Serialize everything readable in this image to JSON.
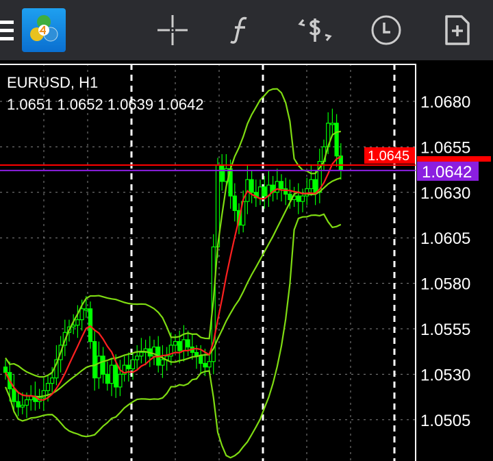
{
  "toolbar": {
    "menu_icon": "hamburger-menu-icon",
    "logo": "metatrader-4-logo",
    "buttons": [
      {
        "name": "crosshair",
        "icon": "crosshair-icon"
      },
      {
        "name": "indicators",
        "icon": "function-icon"
      },
      {
        "name": "trade",
        "icon": "dollar-exchange-icon"
      },
      {
        "name": "timeframe",
        "icon": "clock-icon"
      },
      {
        "name": "new-order",
        "icon": "new-document-icon"
      }
    ]
  },
  "chart_header": {
    "symbol": "EURUSD, H1",
    "ohlc": "1.0651 1.0652 1.0639 1.0642"
  },
  "colors": {
    "background": "#000000",
    "toolbar": "#2b2c30",
    "candle": "#00ff00",
    "bands": "#7fdc12",
    "moving_average": "#ff2020",
    "ask_line": "#ff0000",
    "bid_line": "#8b1fe0"
  },
  "price_labels": {
    "ask": "1.0645",
    "bid": "1.0642"
  },
  "chart_data": {
    "type": "candlestick",
    "symbol": "EURUSD",
    "timeframe": "H1",
    "y_ticks": [
      "1.0680",
      "1.0655",
      "1.0630",
      "1.0605",
      "1.0580",
      "1.0555",
      "1.0530",
      "1.0505"
    ],
    "ylim": [
      1.0478,
      1.0698
    ],
    "grid": true,
    "ask": 1.0645,
    "bid": 1.0642,
    "closes": [
      1.0531,
      1.0522,
      1.0515,
      1.0512,
      1.0513,
      1.0516,
      1.0518,
      1.0515,
      1.0517,
      1.0521,
      1.0525,
      1.0528,
      1.0538,
      1.0546,
      1.0553,
      1.0556,
      1.0557,
      1.056,
      1.0566,
      1.0566,
      1.0548,
      1.0528,
      1.054,
      1.053,
      1.0525,
      1.0535,
      1.0523,
      1.053,
      1.0535,
      1.0533,
      1.0538,
      1.054,
      1.0542,
      1.0544,
      1.054,
      1.0545,
      1.0535,
      1.0538,
      1.054,
      1.0546,
      1.0548,
      1.0543,
      1.0549,
      1.0545,
      1.0542,
      1.054,
      1.0536,
      1.0534,
      1.0537,
      1.06,
      1.0645,
      1.0636,
      1.0643,
      1.0628,
      1.062,
      1.0612,
      1.0625,
      1.0637,
      1.063,
      1.0627,
      1.0633,
      1.0628,
      1.0634,
      1.063,
      1.0636,
      1.0632,
      1.0629,
      1.0626,
      1.0628,
      1.0625,
      1.0628,
      1.0632,
      1.0637,
      1.063,
      1.0647,
      1.0655,
      1.0668,
      1.0668,
      1.065,
      1.0642
    ],
    "indicators": [
      "Bollinger Bands",
      "Moving Average"
    ]
  }
}
